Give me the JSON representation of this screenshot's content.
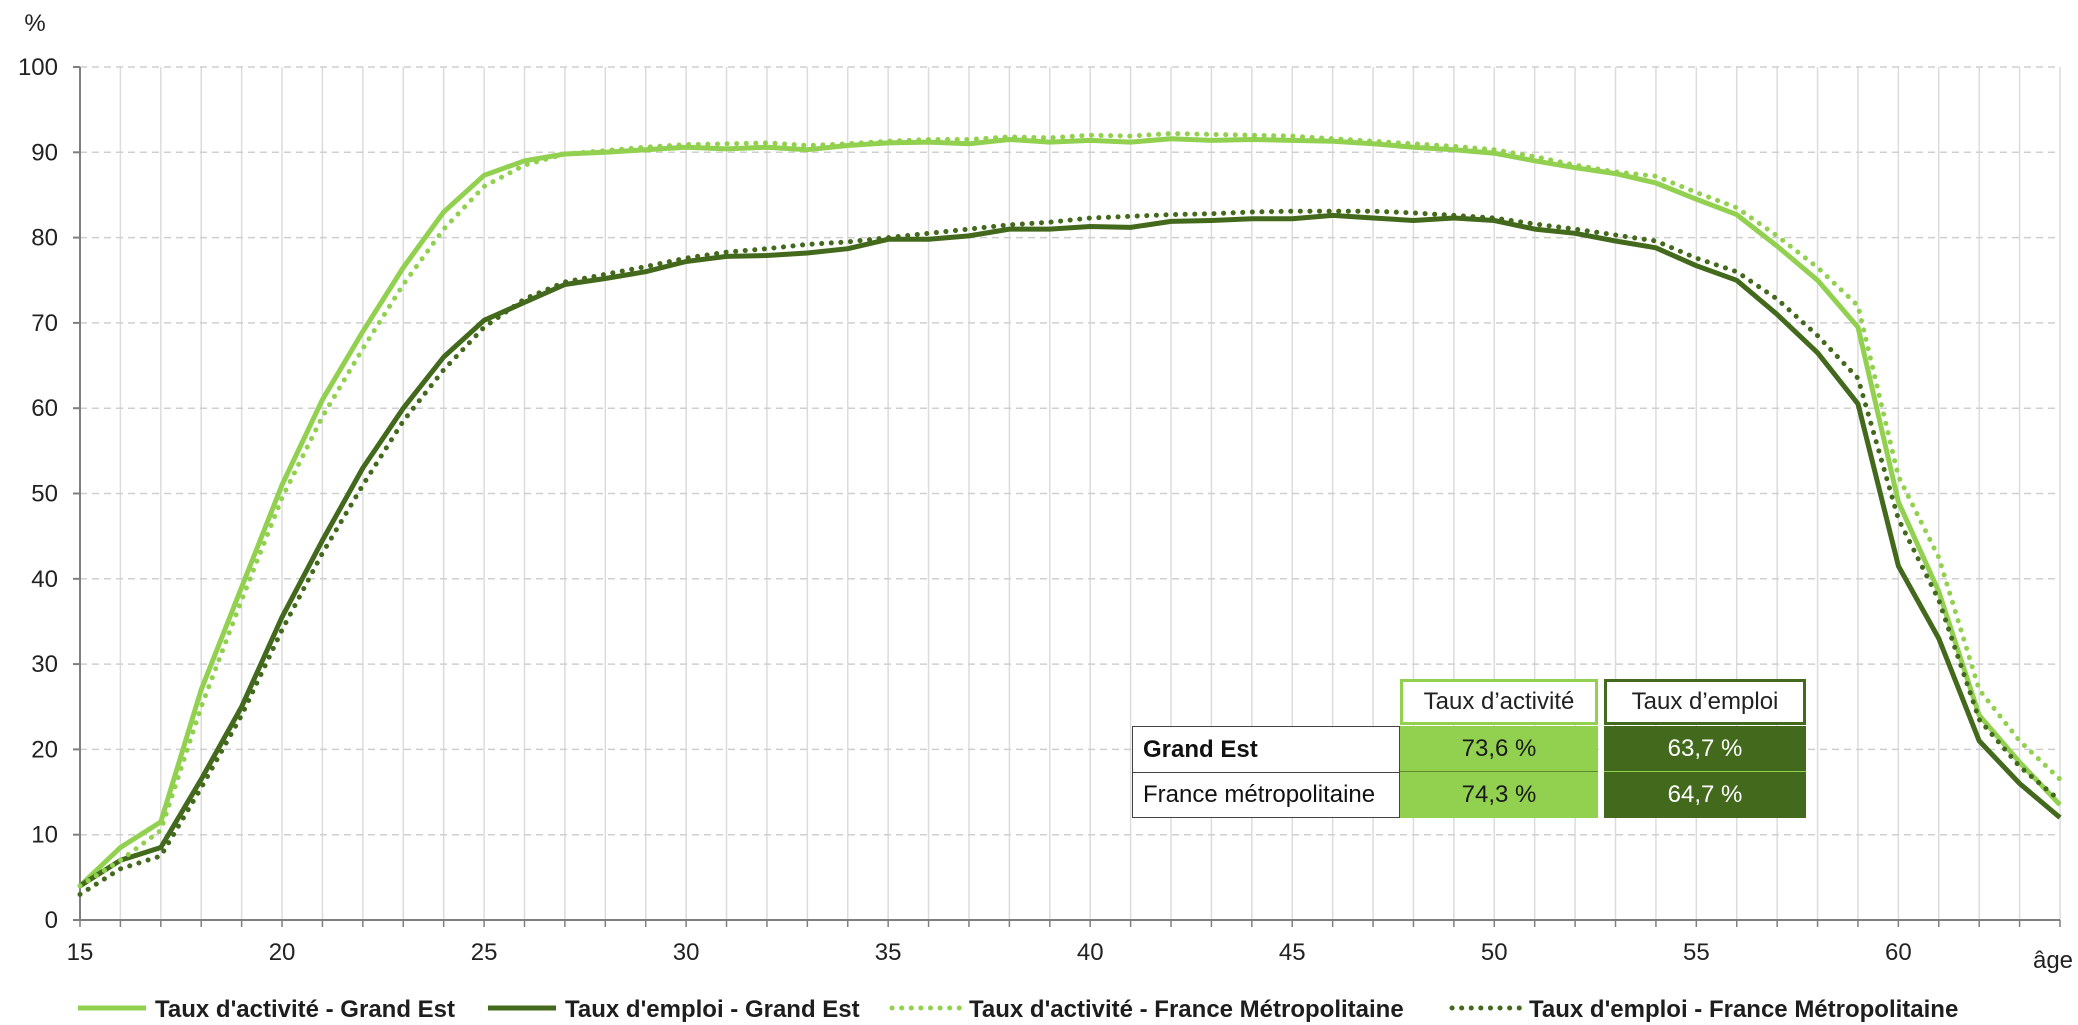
{
  "chart_data": {
    "type": "line",
    "y_unit": "%",
    "x_unit": "âge",
    "xlim": [
      15,
      64
    ],
    "ylim": [
      0,
      100
    ],
    "x_ticks": [
      15,
      20,
      25,
      30,
      35,
      40,
      45,
      50,
      55,
      60
    ],
    "y_ticks": [
      0,
      10,
      20,
      30,
      40,
      50,
      60,
      70,
      80,
      90,
      100
    ],
    "grid": true,
    "legend_position": "bottom",
    "x": [
      15,
      16,
      17,
      18,
      19,
      20,
      21,
      22,
      23,
      24,
      25,
      26,
      27,
      28,
      29,
      30,
      31,
      32,
      33,
      34,
      35,
      36,
      37,
      38,
      39,
      40,
      41,
      42,
      43,
      44,
      45,
      46,
      47,
      48,
      49,
      50,
      51,
      52,
      53,
      54,
      55,
      56,
      57,
      58,
      59,
      60,
      61,
      62,
      63,
      64
    ],
    "series": [
      {
        "name": "Taux d'activité - Grand Est",
        "color": "#92d050",
        "style": "solid",
        "values": [
          4,
          8.5,
          11.5,
          27,
          39,
          51,
          61,
          69,
          76.5,
          83,
          87.3,
          89,
          89.8,
          90,
          90.3,
          90.6,
          90.4,
          90.6,
          90.3,
          90.8,
          91.1,
          91.2,
          91,
          91.5,
          91.2,
          91.4,
          91.2,
          91.6,
          91.4,
          91.5,
          91.4,
          91.3,
          91,
          90.6,
          90.3,
          89.9,
          89,
          88.2,
          87.5,
          86.4,
          84.5,
          82.7,
          79,
          75,
          69.5,
          49,
          38.5,
          24,
          18.5,
          13.5
        ]
      },
      {
        "name": "Taux d'emploi - Grand Est",
        "color": "#43691c",
        "style": "solid",
        "values": [
          4,
          7,
          8.5,
          16.5,
          25,
          35.5,
          44.5,
          53,
          60,
          66,
          70.3,
          72.4,
          74.5,
          75.2,
          76,
          77.2,
          77.8,
          77.9,
          78.2,
          78.7,
          79.8,
          79.8,
          80.2,
          81,
          81,
          81.3,
          81.2,
          81.9,
          82,
          82.2,
          82.2,
          82.6,
          82.3,
          82,
          82.3,
          82,
          81,
          80.5,
          79.6,
          78.8,
          76.7,
          75,
          71,
          66.5,
          60.5,
          41.5,
          33,
          21,
          16,
          12
        ]
      },
      {
        "name": "Taux d'activité - France Métropolitaine",
        "color": "#92d050",
        "style": "dotted",
        "values": [
          4,
          7,
          10.5,
          25,
          37.5,
          49.5,
          59,
          67,
          74.5,
          81,
          86,
          88.5,
          89.8,
          90.2,
          90.6,
          90.9,
          91,
          91.1,
          90.8,
          91,
          91.3,
          91.5,
          91.5,
          91.8,
          91.7,
          92,
          91.9,
          92.2,
          92.1,
          92,
          91.9,
          91.6,
          91.3,
          91,
          90.7,
          90.3,
          89.5,
          88.5,
          87.7,
          87.2,
          85.3,
          83.5,
          80.2,
          76.5,
          72,
          52,
          42.5,
          27,
          21,
          16.5
        ]
      },
      {
        "name": "Taux d'emploi - France Métropolitaine",
        "color": "#43691c",
        "style": "dotted",
        "values": [
          3,
          6,
          7.5,
          15.5,
          24,
          34,
          43,
          51,
          58.5,
          64.5,
          69.5,
          72.8,
          74.8,
          75.7,
          76.6,
          77.6,
          78.3,
          78.7,
          79.2,
          79.5,
          80,
          80.5,
          81,
          81.5,
          81.8,
          82.3,
          82.5,
          82.7,
          82.8,
          83,
          83.1,
          83.1,
          83.1,
          82.9,
          82.6,
          82.3,
          81.6,
          81,
          80.3,
          79.6,
          77.6,
          76,
          72.8,
          68.5,
          63.5,
          47,
          37.5,
          23.5,
          18,
          14
        ]
      }
    ],
    "table": {
      "columns": [
        "Taux d’activité",
        "Taux d’emploi"
      ],
      "rows": [
        {
          "label": "Grand Est",
          "activite": "73,6 %",
          "emploi": "63,7 %"
        },
        {
          "label": "France métropolitaine",
          "activite": "74,3 %",
          "emploi": "64,7 %"
        }
      ]
    }
  }
}
